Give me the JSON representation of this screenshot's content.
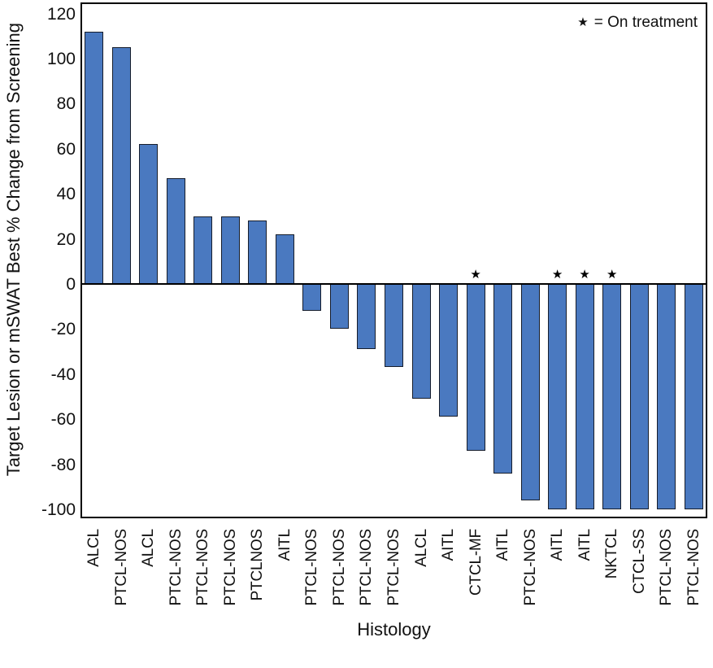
{
  "figure": {
    "x_axis_title": "Histology",
    "y_axis_title": "Target Lesion or mSWAT Best % Change from Screening"
  },
  "legend": {
    "symbol": "★",
    "text": "= On treatment"
  },
  "chart_data": {
    "type": "bar",
    "title": "",
    "xlabel": "Histology",
    "ylabel": "Target Lesion or mSWAT Best % Change from Screening",
    "ylim": [
      -104,
      125
    ],
    "yticks": [
      120,
      100,
      80,
      60,
      40,
      20,
      0,
      -20,
      -40,
      -60,
      -80,
      -100
    ],
    "grid": false,
    "legend_position": "top-right",
    "legend_note": "* = On treatment",
    "bar_color": "#4A79C0",
    "bar_edge_color": "#161D2B",
    "categories": [
      "ALCL",
      "PTCL-NOS",
      "ALCL",
      "PTCL-NOS",
      "PTCL-NOS",
      "PTCL-NOS",
      "PTCLNOS",
      "AITL",
      "PTCL-NOS",
      "PTCL-NOS",
      "PTCL-NOS",
      "PTCL-NOS",
      "ALCL",
      "AITL",
      "CTCL-MF",
      "AITL",
      "PTCL-NOS",
      "AITL",
      "AITL",
      "NKTCL",
      "CTCL-SS",
      "PTCL-NOS",
      "PTCL-NOS"
    ],
    "values": [
      112,
      105,
      62,
      47,
      30,
      30,
      28,
      22,
      -12,
      -20,
      -29,
      -37,
      -51,
      -59,
      -74,
      -84,
      -96,
      -100,
      -100,
      -100,
      -100,
      -100,
      -100
    ],
    "on_treatment": [
      false,
      false,
      false,
      false,
      false,
      false,
      false,
      false,
      false,
      false,
      false,
      false,
      false,
      false,
      true,
      false,
      false,
      true,
      true,
      true,
      false,
      false,
      false
    ]
  }
}
